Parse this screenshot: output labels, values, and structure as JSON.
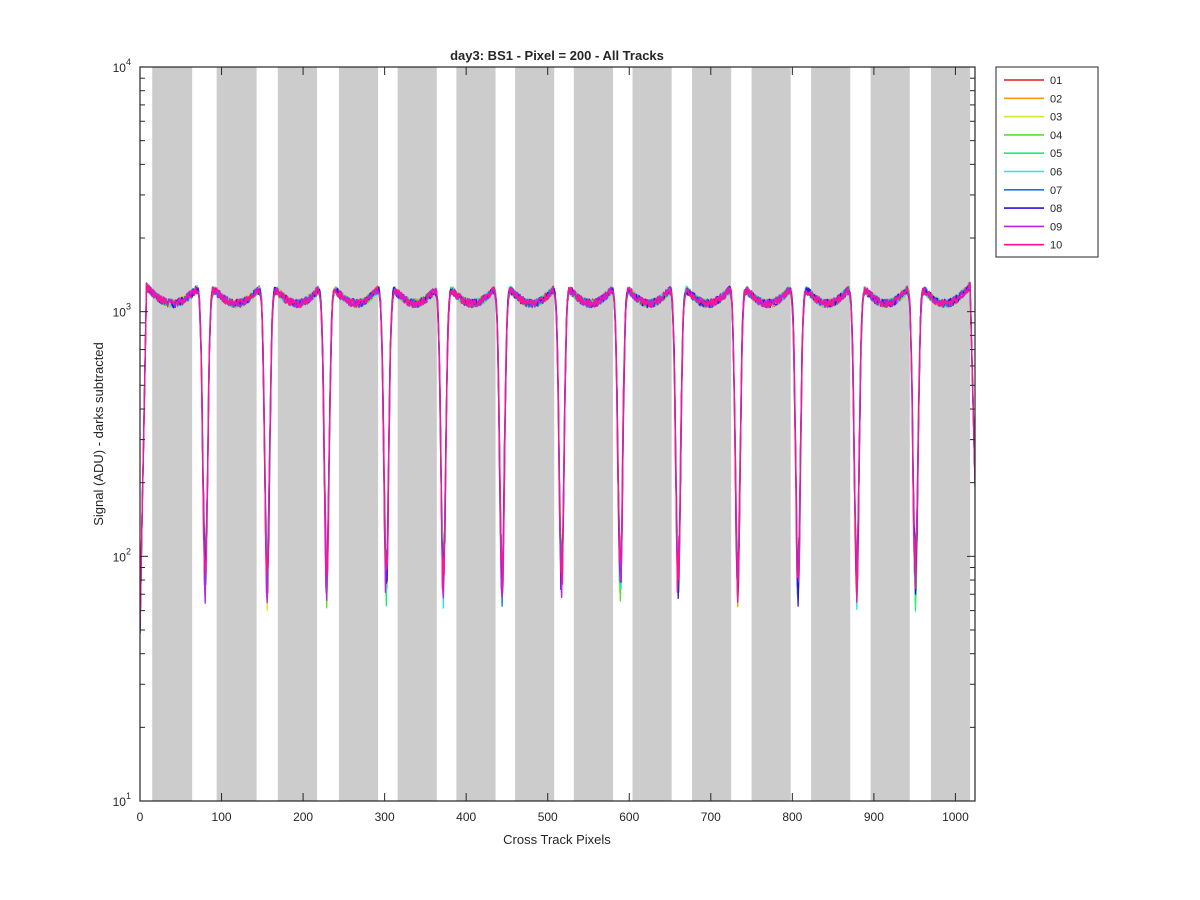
{
  "chart_data": {
    "type": "line",
    "title": "day3: BS1 - Pixel = 200 - All Tracks",
    "xlabel": "Cross Track Pixels",
    "ylabel": "Signal (ADU) - darks subtracted",
    "xlim": [
      0,
      1024
    ],
    "ylim": [
      10,
      10000
    ],
    "yscale": "log",
    "x_ticks": [
      0,
      100,
      200,
      300,
      400,
      500,
      600,
      700,
      800,
      900,
      1000
    ],
    "x_tick_labels": [
      "0",
      "100",
      "200",
      "300",
      "400",
      "500",
      "600",
      "700",
      "800",
      "900",
      "1000"
    ],
    "y_ticks": [
      10,
      100,
      1000,
      10000
    ],
    "y_tick_labels": [
      {
        "base": "10",
        "exp": "1"
      },
      {
        "base": "10",
        "exp": "2"
      },
      {
        "base": "10",
        "exp": "3"
      },
      {
        "base": "10",
        "exp": "4"
      }
    ],
    "grid": false,
    "legend_position": "outside-top-right",
    "shaded_bands": [
      [
        15,
        64
      ],
      [
        94,
        143
      ],
      [
        169,
        217
      ],
      [
        244,
        292
      ],
      [
        316,
        364
      ],
      [
        388,
        436
      ],
      [
        460,
        508
      ],
      [
        532,
        580
      ],
      [
        604,
        652
      ],
      [
        677,
        725
      ],
      [
        750,
        798
      ],
      [
        823,
        871
      ],
      [
        896,
        944
      ],
      [
        970,
        1018
      ]
    ],
    "shaded_color": "#cccccc",
    "dips": [
      80,
      156,
      229,
      302,
      372,
      444,
      517,
      589,
      660,
      733,
      807,
      879,
      951
    ],
    "plateau_level": 1200,
    "dip_level": 80,
    "series": [
      {
        "name": "01",
        "color": "#e41a1c"
      },
      {
        "name": "02",
        "color": "#ff9900"
      },
      {
        "name": "03",
        "color": "#d4e82b"
      },
      {
        "name": "04",
        "color": "#55e22a"
      },
      {
        "name": "05",
        "color": "#22ee77"
      },
      {
        "name": "06",
        "color": "#22e8e8"
      },
      {
        "name": "07",
        "color": "#1a77e0"
      },
      {
        "name": "08",
        "color": "#3311dd"
      },
      {
        "name": "09",
        "color": "#bb22ee"
      },
      {
        "name": "10",
        "color": "#ff1493"
      }
    ]
  }
}
